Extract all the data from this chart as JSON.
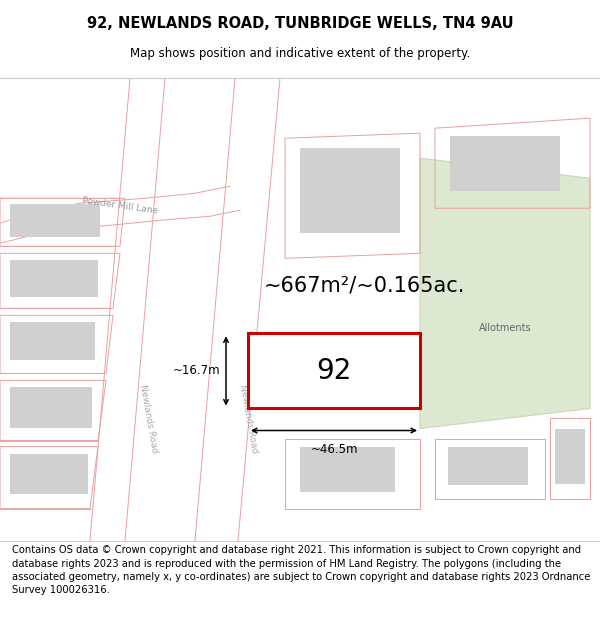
{
  "title": "92, NEWLANDS ROAD, TUNBRIDGE WELLS, TN4 9AU",
  "subtitle": "Map shows position and indicative extent of the property.",
  "footer": "Contains OS data © Crown copyright and database right 2021. This information is subject to Crown copyright and database rights 2023 and is reproduced with the permission of HM Land Registry. The polygons (including the associated geometry, namely x, y co-ordinates) are subject to Crown copyright and database rights 2023 Ordnance Survey 100026316.",
  "area_label": "~667m²/~0.165ac.",
  "width_label": "~46.5m",
  "height_label": "~16.7m",
  "property_number": "92",
  "bg_color": "#ffffff",
  "map_bg": "#f7f7f7",
  "road_fill": "#ffffff",
  "road_edge": "#e8a0a0",
  "property_fill": "#ffffff",
  "property_edge": "#cc0000",
  "building_fill": "#d0d0d0",
  "allotment_fill": "#dde8d0",
  "allotment_edge": "#c8d8b8",
  "title_fontsize": 10.5,
  "subtitle_fontsize": 8.5,
  "footer_fontsize": 7.2,
  "area_fontsize": 15,
  "dim_fontsize": 8.5,
  "number_fontsize": 20,
  "road_label_fontsize": 6.5
}
